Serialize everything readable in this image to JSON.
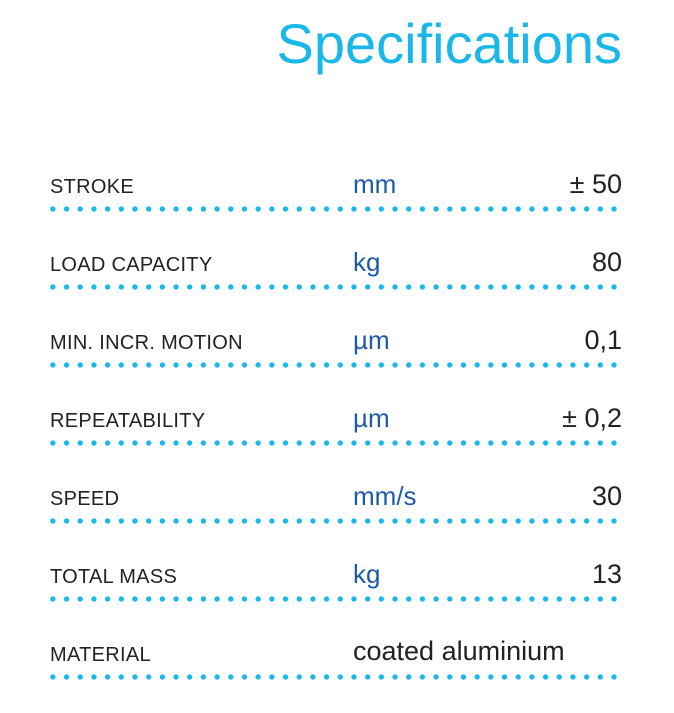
{
  "title": "Specifications",
  "colors": {
    "title": "#1ab8e8",
    "unit": "#1e5aa8",
    "dots": "#1ab8e8",
    "text": "#222222"
  },
  "specs": [
    {
      "label": "STROKE",
      "unit": "mm",
      "value": "± 50"
    },
    {
      "label": "LOAD CAPACITY",
      "unit": "kg",
      "value": "80"
    },
    {
      "label": "MIN. INCR. MOTION",
      "unit": "µm",
      "value": "0,1"
    },
    {
      "label": "REPEATABILITY",
      "unit": "µm",
      "value": "± 0,2"
    },
    {
      "label": "SPEED",
      "unit": "mm/s",
      "value": "30"
    },
    {
      "label": "TOTAL MASS",
      "unit": "kg",
      "value": "13"
    },
    {
      "label": "MATERIAL",
      "value": "coated aluminium"
    }
  ]
}
